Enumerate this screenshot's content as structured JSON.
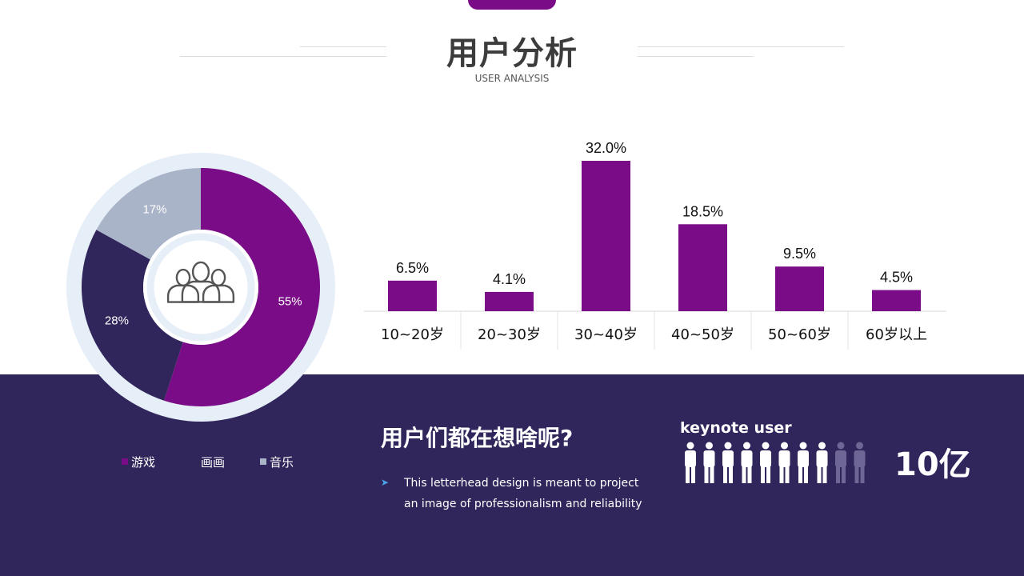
{
  "header": {
    "title": "用户分析",
    "subtitle": "USER ANALYSIS"
  },
  "colors": {
    "purple": "#7a0c87",
    "navy": "#30265b",
    "gray": "#aab4c8",
    "ring": "#e6eef8"
  },
  "chart_data": [
    {
      "type": "pie",
      "variant": "donut",
      "slices": [
        {
          "legend_label": "游戏",
          "label": "55%",
          "value": 55,
          "color": "#7a0c87"
        },
        {
          "legend_label": "画画",
          "label": "28%",
          "value": 28,
          "color": "#30265b"
        },
        {
          "legend_label": "音乐",
          "label": "17%",
          "value": 17,
          "color": "#aab4c8"
        }
      ],
      "center_icon": "people-group-icon",
      "legend": "bottom"
    },
    {
      "type": "bar",
      "categories": [
        "10~20岁",
        "20~30岁",
        "30~40岁",
        "40~50岁",
        "50~60岁",
        "60岁以上"
      ],
      "values": [
        6.5,
        4.1,
        32.0,
        18.5,
        9.5,
        4.5
      ],
      "data_labels": [
        "6.5%",
        "4.1%",
        "32.0%",
        "18.5%",
        "9.5%",
        "4.5%"
      ],
      "ylim": [
        0,
        32
      ],
      "grid": false,
      "color": "#7a0c87"
    }
  ],
  "bottom": {
    "question": "用户们都在想啥呢?",
    "bullet_line1": "This letterhead design is meant to project",
    "bullet_line2": "an image of professionalism and reliability",
    "users_label": "keynote user",
    "users_total": "10亿",
    "people_icons_total": 10,
    "people_icons_highlighted": 8
  }
}
